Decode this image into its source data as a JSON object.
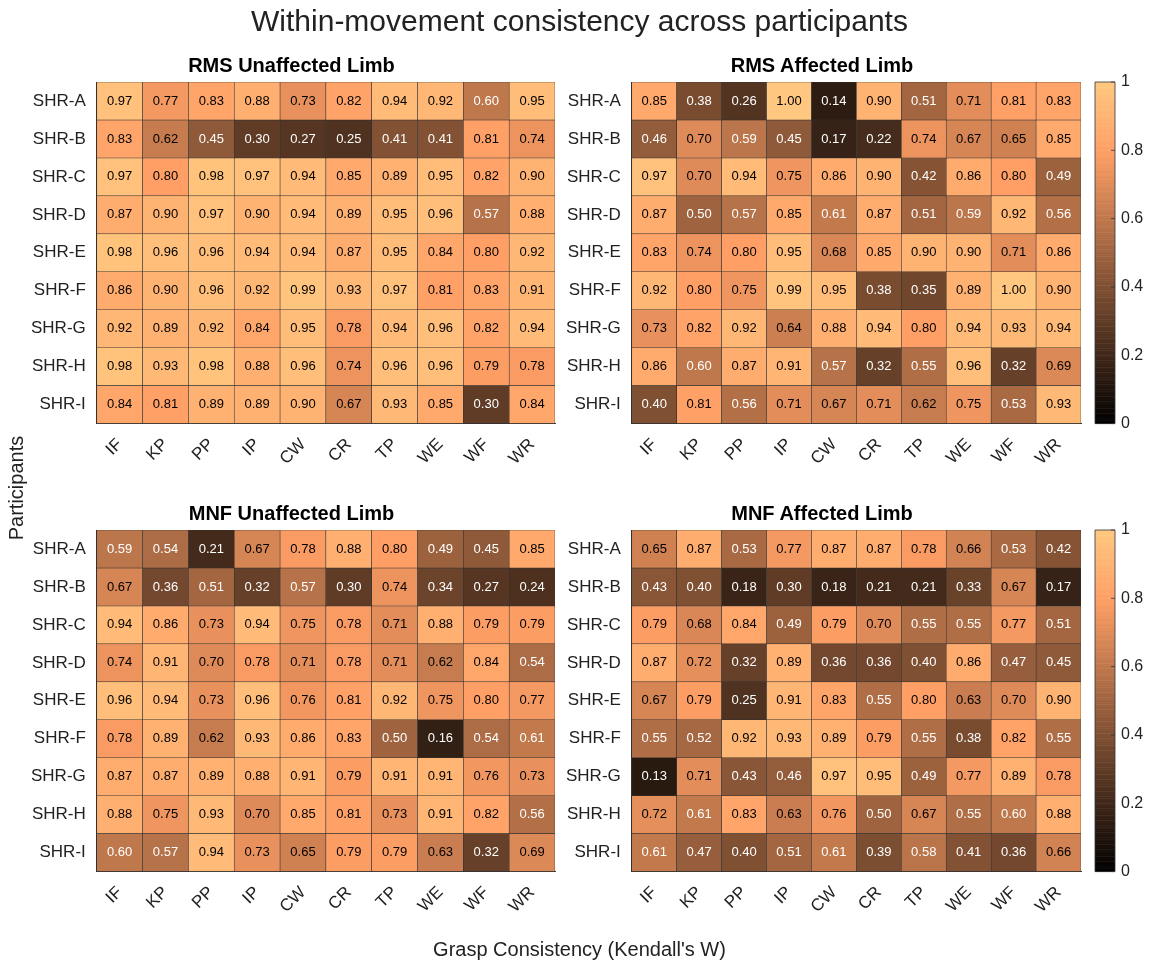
{
  "chart_data": [
    {
      "type": "heatmap",
      "title": "RMS Unaffected Limb",
      "annotations": [
        "Within-movement consistency across participants"
      ],
      "ylabel": "Participants",
      "data_labels": true,
      "categories": [
        "IF",
        "KP",
        "PP",
        "IP",
        "CW",
        "CR",
        "TP",
        "WE",
        "WF",
        "WR"
      ],
      "y_categories": [
        "SHR-A",
        "SHR-B",
        "SHR-C",
        "SHR-D",
        "SHR-E",
        "SHR-F",
        "SHR-G",
        "SHR-H",
        "SHR-I"
      ],
      "cells": [
        [
          0.97,
          0.77,
          0.83,
          0.88,
          0.73,
          0.82,
          0.94,
          0.92,
          0.6,
          0.95
        ],
        [
          0.83,
          0.62,
          0.45,
          0.3,
          0.27,
          0.25,
          0.41,
          0.41,
          0.81,
          0.74
        ],
        [
          0.97,
          0.8,
          0.98,
          0.97,
          0.94,
          0.85,
          0.89,
          0.95,
          0.82,
          0.9
        ],
        [
          0.87,
          0.9,
          0.97,
          0.9,
          0.94,
          0.89,
          0.95,
          0.96,
          0.57,
          0.88
        ],
        [
          0.98,
          0.96,
          0.96,
          0.94,
          0.94,
          0.87,
          0.95,
          0.84,
          0.8,
          0.92
        ],
        [
          0.86,
          0.9,
          0.96,
          0.92,
          0.99,
          0.93,
          0.97,
          0.81,
          0.83,
          0.91
        ],
        [
          0.92,
          0.89,
          0.92,
          0.84,
          0.95,
          0.78,
          0.94,
          0.96,
          0.82,
          0.94
        ],
        [
          0.98,
          0.93,
          0.98,
          0.88,
          0.96,
          0.74,
          0.96,
          0.96,
          0.79,
          0.78
        ],
        [
          0.84,
          0.81,
          0.89,
          0.89,
          0.9,
          0.67,
          0.93,
          0.85,
          0.3,
          0.84
        ]
      ],
      "cell_labels": [
        [
          "0.97",
          "0.77",
          "0.83",
          "0.88",
          "0.73",
          "0.82",
          "0.94",
          "0.92",
          "0.60",
          "0.95"
        ],
        [
          "0.83",
          "0.62",
          "0.45",
          "0.30",
          "0.27",
          "0.25",
          "0.41",
          "0.41",
          "0.81",
          "0.74"
        ],
        [
          "0.97",
          "0.80",
          "0.98",
          "0.97",
          "0.94",
          "0.85",
          "0.89",
          "0.95",
          "0.82",
          "0.90"
        ],
        [
          "0.87",
          "0.90",
          "0.97",
          "0.90",
          "0.94",
          "0.89",
          "0.95",
          "0.96",
          "0.57",
          "0.88"
        ],
        [
          "0.98",
          "0.96",
          "0.96",
          "0.94",
          "0.94",
          "0.87",
          "0.95",
          "0.84",
          "0.80",
          "0.92"
        ],
        [
          "0.86",
          "0.90",
          "0.96",
          "0.92",
          "0.99",
          "0.93",
          "0.97",
          "0.81",
          "0.83",
          "0.91"
        ],
        [
          "0.92",
          "0.89",
          "0.92",
          "0.84",
          "0.95",
          "0.78",
          "0.94",
          "0.96",
          "0.82",
          "0.94"
        ],
        [
          "0.98",
          "0.93",
          "0.98",
          "0.88",
          "0.96",
          "0.74",
          "0.96",
          "0.96",
          "0.79",
          "0.78"
        ],
        [
          "0.84",
          "0.81",
          "0.89",
          "0.89",
          "0.90",
          "0.67",
          "0.93",
          "0.85",
          "0.30",
          "0.84"
        ]
      ]
    },
    {
      "type": "heatmap",
      "title": "RMS Affected Limb",
      "data_labels": true,
      "clim": [
        0,
        1
      ],
      "cticks": [
        0,
        0.2,
        0.4,
        0.6,
        0.8,
        1
      ],
      "categories": [
        "IF",
        "KP",
        "PP",
        "IP",
        "CW",
        "CR",
        "TP",
        "WE",
        "WF",
        "WR"
      ],
      "y_categories": [
        "SHR-A",
        "SHR-B",
        "SHR-C",
        "SHR-D",
        "SHR-E",
        "SHR-F",
        "SHR-G",
        "SHR-H",
        "SHR-I"
      ],
      "cells": [
        [
          0.85,
          0.38,
          0.26,
          1.0,
          0.14,
          0.9,
          0.51,
          0.71,
          0.81,
          0.83
        ],
        [
          0.46,
          0.7,
          0.59,
          0.45,
          0.17,
          0.22,
          0.74,
          0.67,
          0.65,
          0.85
        ],
        [
          0.97,
          0.7,
          0.94,
          0.75,
          0.86,
          0.9,
          0.42,
          0.86,
          0.8,
          0.49
        ],
        [
          0.87,
          0.5,
          0.57,
          0.85,
          0.61,
          0.87,
          0.51,
          0.59,
          0.92,
          0.56
        ],
        [
          0.83,
          0.74,
          0.8,
          0.95,
          0.68,
          0.85,
          0.9,
          0.9,
          0.71,
          0.86
        ],
        [
          0.92,
          0.8,
          0.75,
          0.99,
          0.95,
          0.38,
          0.35,
          0.89,
          1.0,
          0.9
        ],
        [
          0.73,
          0.82,
          0.92,
          0.64,
          0.88,
          0.94,
          0.8,
          0.94,
          0.93,
          0.94
        ],
        [
          0.86,
          0.6,
          0.87,
          0.91,
          0.57,
          0.32,
          0.55,
          0.96,
          0.32,
          0.69
        ],
        [
          0.4,
          0.81,
          0.56,
          0.71,
          0.67,
          0.71,
          0.62,
          0.75,
          0.53,
          0.93
        ]
      ],
      "cell_labels": [
        [
          "0.85",
          "0.38",
          "0.26",
          "1.00",
          "0.14",
          "0.90",
          "0.51",
          "0.71",
          "0.81",
          "0.83"
        ],
        [
          "0.46",
          "0.70",
          "0.59",
          "0.45",
          "0.17",
          "0.22",
          "0.74",
          "0.67",
          "0.65",
          "0.85"
        ],
        [
          "0.97",
          "0.70",
          "0.94",
          "0.75",
          "0.86",
          "0.90",
          "0.42",
          "0.86",
          "0.80",
          "0.49"
        ],
        [
          "0.87",
          "0.50",
          "0.57",
          "0.85",
          "0.61",
          "0.87",
          "0.51",
          "0.59",
          "0.92",
          "0.56"
        ],
        [
          "0.83",
          "0.74",
          "0.80",
          "0.95",
          "0.68",
          "0.85",
          "0.90",
          "0.90",
          "0.71",
          "0.86"
        ],
        [
          "0.92",
          "0.80",
          "0.75",
          "0.99",
          "0.95",
          "0.38",
          "0.35",
          "0.89",
          "1.00",
          "0.90"
        ],
        [
          "0.73",
          "0.82",
          "0.92",
          "0.64",
          "0.88",
          "0.94",
          "0.80",
          "0.94",
          "0.93",
          "0.94"
        ],
        [
          "0.86",
          "0.60",
          "0.87",
          "0.91",
          "0.57",
          "0.32",
          "0.55",
          "0.96",
          "0.32",
          "0.69"
        ],
        [
          "0.40",
          "0.81",
          "0.56",
          "0.71",
          "0.67",
          "0.71",
          "0.62",
          "0.75",
          "0.53",
          "0.93"
        ]
      ]
    },
    {
      "type": "heatmap",
      "title": "MNF Unaffected Limb",
      "xlabel": "Grasp Consistency (Kendall's W)",
      "data_labels": true,
      "categories": [
        "IF",
        "KP",
        "PP",
        "IP",
        "CW",
        "CR",
        "TP",
        "WE",
        "WF",
        "WR"
      ],
      "y_categories": [
        "SHR-A",
        "SHR-B",
        "SHR-C",
        "SHR-D",
        "SHR-E",
        "SHR-F",
        "SHR-G",
        "SHR-H",
        "SHR-I"
      ],
      "cells": [
        [
          0.59,
          0.54,
          0.21,
          0.67,
          0.78,
          0.88,
          0.8,
          0.49,
          0.45,
          0.85
        ],
        [
          0.67,
          0.36,
          0.51,
          0.32,
          0.57,
          0.3,
          0.74,
          0.34,
          0.27,
          0.24
        ],
        [
          0.94,
          0.86,
          0.73,
          0.94,
          0.75,
          0.78,
          0.71,
          0.88,
          0.79,
          0.79
        ],
        [
          0.74,
          0.91,
          0.7,
          0.78,
          0.71,
          0.78,
          0.71,
          0.62,
          0.84,
          0.54
        ],
        [
          0.96,
          0.94,
          0.73,
          0.96,
          0.76,
          0.81,
          0.92,
          0.75,
          0.8,
          0.77
        ],
        [
          0.78,
          0.89,
          0.62,
          0.93,
          0.86,
          0.83,
          0.5,
          0.16,
          0.54,
          0.61
        ],
        [
          0.87,
          0.87,
          0.89,
          0.88,
          0.91,
          0.79,
          0.91,
          0.91,
          0.76,
          0.73
        ],
        [
          0.88,
          0.75,
          0.93,
          0.7,
          0.85,
          0.81,
          0.73,
          0.91,
          0.82,
          0.56
        ],
        [
          0.6,
          0.57,
          0.94,
          0.73,
          0.65,
          0.79,
          0.79,
          0.63,
          0.32,
          0.69
        ]
      ],
      "cell_labels": [
        [
          "0.59",
          "0.54",
          "0.21",
          "0.67",
          "0.78",
          "0.88",
          "0.80",
          "0.49",
          "0.45",
          "0.85"
        ],
        [
          "0.67",
          "0.36",
          "0.51",
          "0.32",
          "0.57",
          "0.30",
          "0.74",
          "0.34",
          "0.27",
          "0.24"
        ],
        [
          "0.94",
          "0.86",
          "0.73",
          "0.94",
          "0.75",
          "0.78",
          "0.71",
          "0.88",
          "0.79",
          "0.79"
        ],
        [
          "0.74",
          "0.91",
          "0.70",
          "0.78",
          "0.71",
          "0.78",
          "0.71",
          "0.62",
          "0.84",
          "0.54"
        ],
        [
          "0.96",
          "0.94",
          "0.73",
          "0.96",
          "0.76",
          "0.81",
          "0.92",
          "0.75",
          "0.80",
          "0.77"
        ],
        [
          "0.78",
          "0.89",
          "0.62",
          "0.93",
          "0.86",
          "0.83",
          "0.50",
          "0.16",
          "0.54",
          "0.61"
        ],
        [
          "0.87",
          "0.87",
          "0.89",
          "0.88",
          "0.91",
          "0.79",
          "0.91",
          "0.91",
          "0.76",
          "0.73"
        ],
        [
          "0.88",
          "0.75",
          "0.93",
          "0.70",
          "0.85",
          "0.81",
          "0.73",
          "0.91",
          "0.82",
          "0.56"
        ],
        [
          "0.60",
          "0.57",
          "0.94",
          "0.73",
          "0.65",
          "0.79",
          "0.79",
          "0.63",
          "0.32",
          "0.69"
        ]
      ]
    },
    {
      "type": "heatmap",
      "title": "MNF Affected Limb",
      "data_labels": true,
      "clim": [
        0,
        1
      ],
      "cticks": [
        0,
        0.2,
        0.4,
        0.6,
        0.8,
        1
      ],
      "categories": [
        "IF",
        "KP",
        "PP",
        "IP",
        "CW",
        "CR",
        "TP",
        "WE",
        "WF",
        "WR"
      ],
      "y_categories": [
        "SHR-A",
        "SHR-B",
        "SHR-C",
        "SHR-D",
        "SHR-E",
        "SHR-F",
        "SHR-G",
        "SHR-H",
        "SHR-I"
      ],
      "cells": [
        [
          0.65,
          0.87,
          0.53,
          0.77,
          0.87,
          0.87,
          0.78,
          0.66,
          0.53,
          0.42
        ],
        [
          0.43,
          0.4,
          0.18,
          0.3,
          0.18,
          0.21,
          0.21,
          0.33,
          0.67,
          0.17
        ],
        [
          0.79,
          0.68,
          0.84,
          0.49,
          0.79,
          0.7,
          0.55,
          0.55,
          0.77,
          0.51
        ],
        [
          0.87,
          0.72,
          0.32,
          0.89,
          0.36,
          0.36,
          0.4,
          0.86,
          0.47,
          0.45
        ],
        [
          0.67,
          0.79,
          0.25,
          0.91,
          0.83,
          0.55,
          0.8,
          0.63,
          0.7,
          0.9
        ],
        [
          0.55,
          0.52,
          0.92,
          0.93,
          0.89,
          0.79,
          0.55,
          0.38,
          0.82,
          0.55
        ],
        [
          0.13,
          0.71,
          0.43,
          0.46,
          0.97,
          0.95,
          0.49,
          0.77,
          0.89,
          0.78
        ],
        [
          0.72,
          0.61,
          0.83,
          0.63,
          0.76,
          0.5,
          0.67,
          0.55,
          0.6,
          0.88
        ],
        [
          0.61,
          0.47,
          0.4,
          0.51,
          0.61,
          0.39,
          0.58,
          0.41,
          0.36,
          0.66
        ]
      ],
      "cell_labels": [
        [
          "0.65",
          "0.87",
          "0.53",
          "0.77",
          "0.87",
          "0.87",
          "0.78",
          "0.66",
          "0.53",
          "0.42"
        ],
        [
          "0.43",
          "0.40",
          "0.18",
          "0.30",
          "0.18",
          "0.21",
          "0.21",
          "0.33",
          "0.67",
          "0.17"
        ],
        [
          "0.79",
          "0.68",
          "0.84",
          "0.49",
          "0.79",
          "0.70",
          "0.55",
          "0.55",
          "0.77",
          "0.51"
        ],
        [
          "0.87",
          "0.72",
          "0.32",
          "0.89",
          "0.36",
          "0.36",
          "0.40",
          "0.86",
          "0.47",
          "0.45"
        ],
        [
          "0.67",
          "0.79",
          "0.25",
          "0.91",
          "0.83",
          "0.55",
          "0.80",
          "0.63",
          "0.70",
          "0.90"
        ],
        [
          "0.55",
          "0.52",
          "0.92",
          "0.93",
          "0.89",
          "0.79",
          "0.55",
          "0.38",
          "0.82",
          "0.55"
        ],
        [
          "0.13",
          "0.71",
          "0.43",
          "0.46",
          "0.97",
          "0.95",
          "0.49",
          "0.77",
          "0.89",
          "0.78"
        ],
        [
          "0.72",
          "0.61",
          "0.83",
          "0.63",
          "0.76",
          "0.50",
          "0.67",
          "0.55",
          "0.60",
          "0.88"
        ],
        [
          "0.61",
          "0.47",
          "0.40",
          "0.51",
          "0.61",
          "0.39",
          "0.58",
          "0.41",
          "0.36",
          "0.66"
        ]
      ]
    }
  ]
}
